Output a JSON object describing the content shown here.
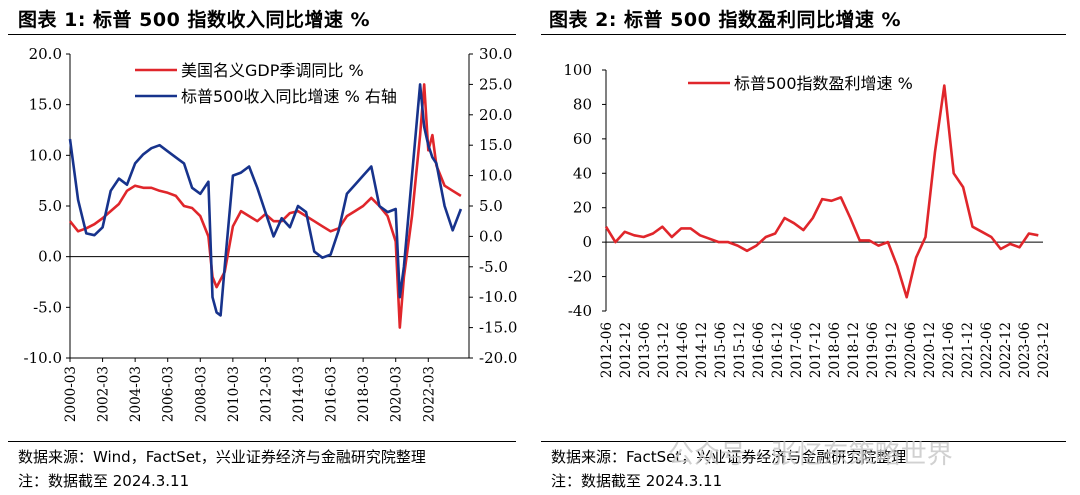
{
  "left": {
    "title": "图表 1:  标普 500 指数收入同比增速    %",
    "source": "数据来源：Wind，FactSet，兴业证券经济与金融研究院整理",
    "note": "注：数据截至 2024.3.11"
  },
  "right": {
    "title": "图表 2:  标普 500 指数盈利同比增速    %",
    "source": "数据来源：FactSet，兴业证券经济与金融研究院整理",
    "note": "注：数据截至 2024.3.11"
  },
  "watermark": "公众号 · 张忆东策略世界",
  "colors": {
    "red": "#e0262b",
    "blue": "#17338c",
    "axis": "#000000"
  },
  "chart_data": [
    {
      "type": "line",
      "title": "",
      "xlabel": "",
      "ylabel": "",
      "x_tick_labels": [
        "2000-03",
        "2002-03",
        "2004-03",
        "2006-03",
        "2008-03",
        "2010-03",
        "2012-03",
        "2014-03",
        "2016-03",
        "2018-03",
        "2020-03",
        "2022-03"
      ],
      "x_range": [
        2000.0,
        2024.5
      ],
      "y_left": {
        "range": [
          -10,
          20
        ],
        "ticks": [
          "-10.0",
          "-5.0",
          "0.0",
          "5.0",
          "10.0",
          "15.0",
          "20.0"
        ]
      },
      "y_right": {
        "range": [
          -20,
          30
        ],
        "ticks": [
          "-20.0",
          "-15.0",
          "-10.0",
          "-5.0",
          "0.0",
          "5.0",
          "10.0",
          "15.0",
          "20.0",
          "25.0",
          "30.0"
        ]
      },
      "legend_position": "top-center",
      "grid": false,
      "series": [
        {
          "name": "美国名义GDP季调同比 %",
          "axis": "left",
          "color": "#e0262b",
          "x": [
            2000.0,
            2000.5,
            2001.0,
            2001.5,
            2002.0,
            2002.5,
            2003.0,
            2003.5,
            2004.0,
            2004.5,
            2005.0,
            2005.5,
            2006.0,
            2006.5,
            2007.0,
            2007.5,
            2008.0,
            2008.5,
            2008.75,
            2009.0,
            2009.5,
            2010.0,
            2010.5,
            2011.0,
            2011.5,
            2012.0,
            2012.5,
            2013.0,
            2013.5,
            2014.0,
            2014.5,
            2015.0,
            2015.5,
            2016.0,
            2016.5,
            2017.0,
            2017.5,
            2018.0,
            2018.5,
            2019.0,
            2019.5,
            2020.0,
            2020.25,
            2020.5,
            2021.0,
            2021.5,
            2021.75,
            2022.0,
            2022.25,
            2022.5,
            2023.0,
            2023.5,
            2024.0
          ],
          "values": [
            3.5,
            2.5,
            2.8,
            3.2,
            3.8,
            4.5,
            5.2,
            6.5,
            7.0,
            6.8,
            6.8,
            6.5,
            6.3,
            6.0,
            5.0,
            4.8,
            4.0,
            2.0,
            -2.0,
            -3.0,
            -1.5,
            3.0,
            4.5,
            4.0,
            3.5,
            4.2,
            3.5,
            3.5,
            4.3,
            4.5,
            4.0,
            3.5,
            3.0,
            2.5,
            2.8,
            4.0,
            4.5,
            5.0,
            5.8,
            5.0,
            4.0,
            1.5,
            -7.0,
            -2.0,
            4.0,
            12.0,
            17.0,
            10.5,
            12.0,
            9.0,
            7.0,
            6.5,
            6.0
          ]
        },
        {
          "name": "标普500收入同比增速 % 右轴",
          "axis": "right",
          "color": "#17338c",
          "x": [
            2000.0,
            2000.5,
            2001.0,
            2001.5,
            2002.0,
            2002.5,
            2003.0,
            2003.5,
            2004.0,
            2004.5,
            2005.0,
            2005.5,
            2006.0,
            2006.5,
            2007.0,
            2007.5,
            2008.0,
            2008.5,
            2008.75,
            2009.0,
            2009.25,
            2009.5,
            2010.0,
            2010.5,
            2011.0,
            2011.5,
            2012.0,
            2012.5,
            2013.0,
            2013.5,
            2014.0,
            2014.5,
            2015.0,
            2015.5,
            2016.0,
            2016.5,
            2017.0,
            2017.5,
            2018.0,
            2018.5,
            2019.0,
            2019.5,
            2020.0,
            2020.25,
            2020.5,
            2021.0,
            2021.5,
            2021.75,
            2022.0,
            2022.25,
            2022.5,
            2023.0,
            2023.5,
            2024.0
          ],
          "values": [
            16.0,
            6.0,
            0.5,
            0.2,
            1.5,
            7.5,
            9.5,
            8.5,
            12.0,
            13.5,
            14.5,
            15.0,
            14.0,
            13.0,
            12.0,
            8.0,
            7.0,
            9.0,
            -10.0,
            -12.5,
            -13.0,
            -5.0,
            10.0,
            10.5,
            11.5,
            8.0,
            4.0,
            0.0,
            3.0,
            1.5,
            5.0,
            4.0,
            -2.5,
            -3.5,
            -3.0,
            1.0,
            7.0,
            8.5,
            10.0,
            11.5,
            5.0,
            4.0,
            4.5,
            -10.0,
            -5.0,
            10.0,
            25.0,
            18.0,
            15.0,
            13.0,
            12.0,
            5.0,
            1.0,
            4.5
          ]
        }
      ]
    },
    {
      "type": "line",
      "title": "",
      "xlabel": "",
      "ylabel": "",
      "x_tick_labels": [
        "2012-06",
        "2012-12",
        "2013-06",
        "2013-12",
        "2014-06",
        "2014-12",
        "2015-06",
        "2015-12",
        "2016-06",
        "2016-12",
        "2017-06",
        "2017-12",
        "2018-06",
        "2018-12",
        "2019-06",
        "2019-12",
        "2020-06",
        "2020-12",
        "2021-06",
        "2021-12",
        "2022-06",
        "2022-12",
        "2023-06",
        "2023-12"
      ],
      "x_range": [
        2012.375,
        2024.0
      ],
      "y_range": [
        -40,
        100
      ],
      "y_ticks": [
        "-40",
        "-20",
        "0",
        "20",
        "40",
        "60",
        "80",
        "100"
      ],
      "legend_position": "top-center",
      "grid": false,
      "series": [
        {
          "name": "标普500指数盈利增速 %",
          "color": "#e0262b",
          "x": [
            2012.375,
            2012.625,
            2012.875,
            2013.125,
            2013.375,
            2013.625,
            2013.875,
            2014.125,
            2014.375,
            2014.625,
            2014.875,
            2015.125,
            2015.375,
            2015.625,
            2015.875,
            2016.125,
            2016.375,
            2016.625,
            2016.875,
            2017.125,
            2017.375,
            2017.625,
            2017.875,
            2018.125,
            2018.375,
            2018.625,
            2018.875,
            2019.125,
            2019.375,
            2019.625,
            2019.875,
            2020.125,
            2020.375,
            2020.625,
            2020.875,
            2021.125,
            2021.375,
            2021.625,
            2021.875,
            2022.125,
            2022.375,
            2022.625,
            2022.875,
            2023.125,
            2023.375,
            2023.625,
            2023.875
          ],
          "values": [
            9,
            0,
            6,
            4,
            3,
            5,
            9,
            3,
            8,
            8,
            4,
            2,
            0,
            0,
            -2,
            -5,
            -2,
            3,
            5,
            14,
            11,
            7,
            14,
            25,
            24,
            26,
            14,
            1,
            1,
            -2,
            0,
            -14,
            -32,
            -9,
            3,
            52,
            91,
            40,
            32,
            9,
            6,
            3,
            -4,
            -1,
            -3,
            5,
            4
          ]
        }
      ]
    }
  ]
}
